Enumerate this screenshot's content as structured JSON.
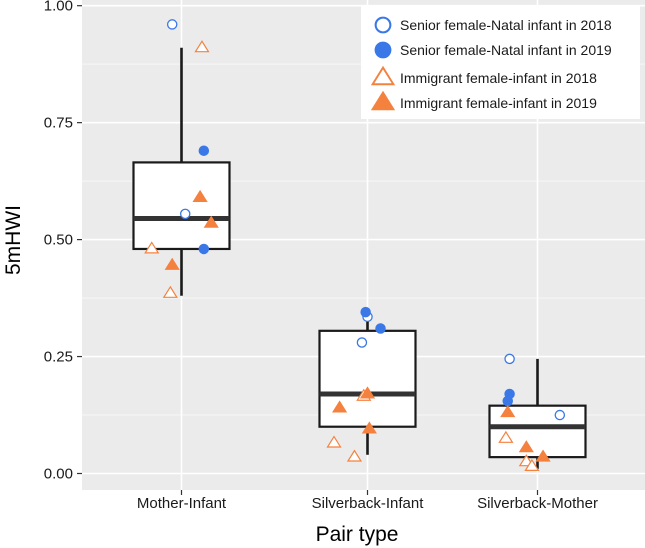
{
  "chart_data": {
    "type": "boxplot",
    "xlabel": "Pair type",
    "ylabel": "5mHWI",
    "ylim": [
      0.0,
      1.0
    ],
    "yticks": [
      0.0,
      0.25,
      0.5,
      0.75,
      1.0
    ],
    "ytick_labels": [
      "0.00",
      "0.25",
      "0.50",
      "0.75",
      "1.00"
    ],
    "grid": true,
    "legend_position": "top-right",
    "categories": [
      "Mother-Infant",
      "Silverback-Infant",
      "Silverback-Mother"
    ],
    "boxes": [
      {
        "category": "Mother-Infant",
        "min": 0.38,
        "q1": 0.48,
        "median": 0.545,
        "q3": 0.665,
        "max": 0.91
      },
      {
        "category": "Silverback-Infant",
        "min": 0.04,
        "q1": 0.1,
        "median": 0.17,
        "q3": 0.305,
        "max": 0.345
      },
      {
        "category": "Silverback-Mother",
        "min": 0.01,
        "q1": 0.035,
        "median": 0.1,
        "q3": 0.145,
        "max": 0.245
      }
    ],
    "series": [
      {
        "name": "Senior female-Natal infant in 2018",
        "marker": "circle-open",
        "color": "#3b78e7",
        "points": [
          {
            "category": "Mother-Infant",
            "jitter": -0.05,
            "y": 0.96
          },
          {
            "category": "Mother-Infant",
            "jitter": 0.02,
            "y": 0.555
          },
          {
            "category": "Silverback-Infant",
            "jitter": -0.03,
            "y": 0.28
          },
          {
            "category": "Silverback-Infant",
            "jitter": 0.0,
            "y": 0.335
          },
          {
            "category": "Silverback-Mother",
            "jitter": -0.15,
            "y": 0.245
          },
          {
            "category": "Silverback-Mother",
            "jitter": 0.12,
            "y": 0.125
          }
        ]
      },
      {
        "name": "Senior female-Natal infant in 2019",
        "marker": "circle-filled",
        "color": "#3b78e7",
        "points": [
          {
            "category": "Mother-Infant",
            "jitter": 0.12,
            "y": 0.69
          },
          {
            "category": "Mother-Infant",
            "jitter": 0.12,
            "y": 0.48
          },
          {
            "category": "Silverback-Infant",
            "jitter": -0.01,
            "y": 0.345
          },
          {
            "category": "Silverback-Infant",
            "jitter": 0.07,
            "y": 0.31
          },
          {
            "category": "Silverback-Mother",
            "jitter": -0.16,
            "y": 0.155
          },
          {
            "category": "Silverback-Mother",
            "jitter": -0.15,
            "y": 0.17
          }
        ]
      },
      {
        "name": "Immigrant female-infant in 2018",
        "marker": "triangle-open",
        "color": "#f5813f",
        "points": [
          {
            "category": "Mother-Infant",
            "jitter": 0.11,
            "y": 0.91
          },
          {
            "category": "Mother-Infant",
            "jitter": -0.16,
            "y": 0.48
          },
          {
            "category": "Mother-Infant",
            "jitter": -0.06,
            "y": 0.385
          },
          {
            "category": "Silverback-Infant",
            "jitter": -0.18,
            "y": 0.065
          },
          {
            "category": "Silverback-Infant",
            "jitter": -0.07,
            "y": 0.035
          },
          {
            "category": "Silverback-Infant",
            "jitter": -0.02,
            "y": 0.165
          },
          {
            "category": "Silverback-Mother",
            "jitter": -0.17,
            "y": 0.075
          },
          {
            "category": "Silverback-Mother",
            "jitter": -0.06,
            "y": 0.025
          },
          {
            "category": "Silverback-Mother",
            "jitter": -0.03,
            "y": 0.015
          }
        ]
      },
      {
        "name": "Immigrant female-infant in 2019",
        "marker": "triangle-filled",
        "color": "#f5813f",
        "points": [
          {
            "category": "Mother-Infant",
            "jitter": 0.1,
            "y": 0.59
          },
          {
            "category": "Mother-Infant",
            "jitter": 0.16,
            "y": 0.535
          },
          {
            "category": "Mother-Infant",
            "jitter": -0.05,
            "y": 0.445
          },
          {
            "category": "Silverback-Infant",
            "jitter": -0.15,
            "y": 0.14
          },
          {
            "category": "Silverback-Infant",
            "jitter": 0.0,
            "y": 0.17
          },
          {
            "category": "Silverback-Infant",
            "jitter": 0.01,
            "y": 0.095
          },
          {
            "category": "Silverback-Mother",
            "jitter": -0.16,
            "y": 0.13
          },
          {
            "category": "Silverback-Mother",
            "jitter": -0.06,
            "y": 0.055
          },
          {
            "category": "Silverback-Mother",
            "jitter": 0.03,
            "y": 0.035
          }
        ]
      }
    ]
  }
}
